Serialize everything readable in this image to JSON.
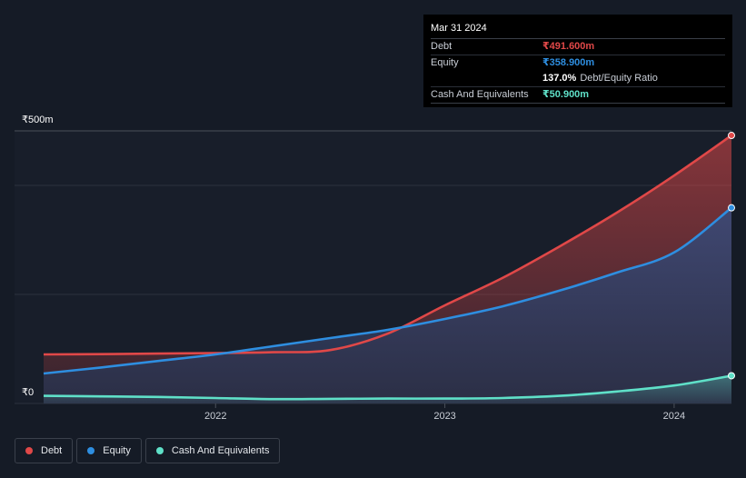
{
  "tooltip": {
    "date": "Mar 31 2024",
    "debt_label": "Debt",
    "debt_value": "₹491.600m",
    "equity_label": "Equity",
    "equity_value": "₹358.900m",
    "ratio_value": "137.0%",
    "ratio_label": "Debt/Equity Ratio",
    "cash_label": "Cash And Equivalents",
    "cash_value": "₹50.900m"
  },
  "colors": {
    "debt": "#e04848",
    "equity": "#2e8ee0",
    "cash": "#5fe0c8",
    "background": "#151b26"
  },
  "chart_data": {
    "type": "area",
    "ylabels": {
      "top": "₹500m",
      "bottom": "₹0"
    },
    "x_ticks": [
      "2022",
      "2023",
      "2024"
    ],
    "ylim": [
      0,
      500
    ],
    "xlim": [
      2021.25,
      2024.25
    ],
    "grid": true,
    "legend_position": "bottom-left",
    "series": [
      {
        "name": "Debt",
        "color": "#e04848",
        "points": [
          [
            2021.25,
            90
          ],
          [
            2021.5,
            90.5
          ],
          [
            2021.75,
            91.5
          ],
          [
            2022.0,
            92.5
          ],
          [
            2022.25,
            94
          ],
          [
            2022.5,
            98
          ],
          [
            2022.75,
            128
          ],
          [
            2023.0,
            180
          ],
          [
            2023.25,
            230
          ],
          [
            2023.5,
            288
          ],
          [
            2023.75,
            350
          ],
          [
            2024.0,
            418
          ],
          [
            2024.25,
            491.6
          ]
        ]
      },
      {
        "name": "Equity",
        "color": "#2e8ee0",
        "points": [
          [
            2021.25,
            55
          ],
          [
            2021.5,
            66
          ],
          [
            2021.75,
            78
          ],
          [
            2022.0,
            90
          ],
          [
            2022.25,
            105
          ],
          [
            2022.5,
            120
          ],
          [
            2022.75,
            135
          ],
          [
            2023.0,
            155
          ],
          [
            2023.25,
            178
          ],
          [
            2023.5,
            207
          ],
          [
            2023.75,
            240
          ],
          [
            2024.0,
            277
          ],
          [
            2024.25,
            358.9
          ]
        ]
      },
      {
        "name": "Cash And Equivalents",
        "color": "#5fe0c8",
        "points": [
          [
            2021.25,
            14
          ],
          [
            2021.5,
            13
          ],
          [
            2021.75,
            12
          ],
          [
            2022.0,
            10
          ],
          [
            2022.25,
            8
          ],
          [
            2022.5,
            8.5
          ],
          [
            2022.75,
            9
          ],
          [
            2023.0,
            9
          ],
          [
            2023.25,
            10
          ],
          [
            2023.5,
            14
          ],
          [
            2023.75,
            22
          ],
          [
            2024.0,
            33
          ],
          [
            2024.25,
            50.9
          ]
        ]
      }
    ]
  },
  "legend": [
    {
      "label": "Debt",
      "color": "#e04848"
    },
    {
      "label": "Equity",
      "color": "#2e8ee0"
    },
    {
      "label": "Cash And Equivalents",
      "color": "#5fe0c8"
    }
  ]
}
